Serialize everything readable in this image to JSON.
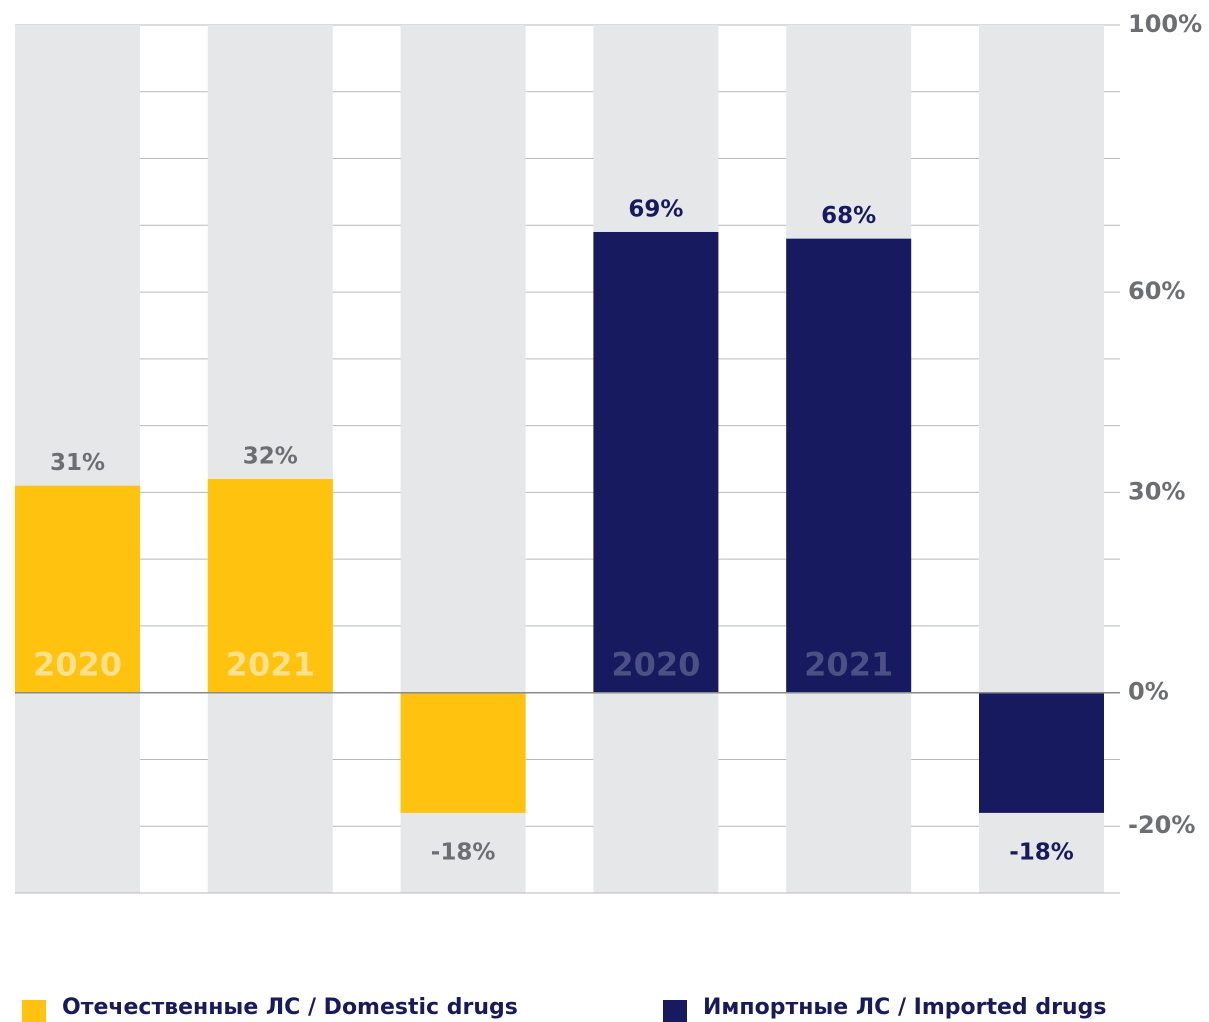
{
  "chart_data": {
    "type": "bar",
    "categories": [
      "2020",
      "2021",
      null,
      "2020",
      "2021",
      null
    ],
    "series": [
      {
        "name": "Отечественные ЛС / Domestic drugs",
        "color": "#ffc20e",
        "label_color": "#6d6e71",
        "category_label_color": "#ffe08c",
        "values": [
          31,
          32,
          -18,
          null,
          null,
          null
        ],
        "value_labels": [
          "31%",
          "32%",
          "-18%",
          null,
          null,
          null
        ]
      },
      {
        "name": "Импортные ЛС / Imported drugs",
        "color": "#171a5f",
        "label_color": "#171a5f",
        "category_label_color": "#4d5082",
        "values": [
          null,
          null,
          null,
          69,
          68,
          -18
        ],
        "value_labels": [
          null,
          null,
          null,
          "69%",
          "68%",
          "-18%"
        ]
      }
    ],
    "ylim": [
      -30,
      100
    ],
    "yticks": [
      {
        "value": 100,
        "label": "100%"
      },
      {
        "value": 60,
        "label": "60%"
      },
      {
        "value": 30,
        "label": "30%"
      },
      {
        "value": 0,
        "label": "0%"
      },
      {
        "value": -20,
        "label": "-20%"
      }
    ],
    "grid_lines": [
      -30,
      -20,
      -10,
      0,
      10,
      20,
      30,
      40,
      50,
      60,
      70,
      80,
      90,
      100
    ],
    "grid": true,
    "legend": "bottom"
  }
}
